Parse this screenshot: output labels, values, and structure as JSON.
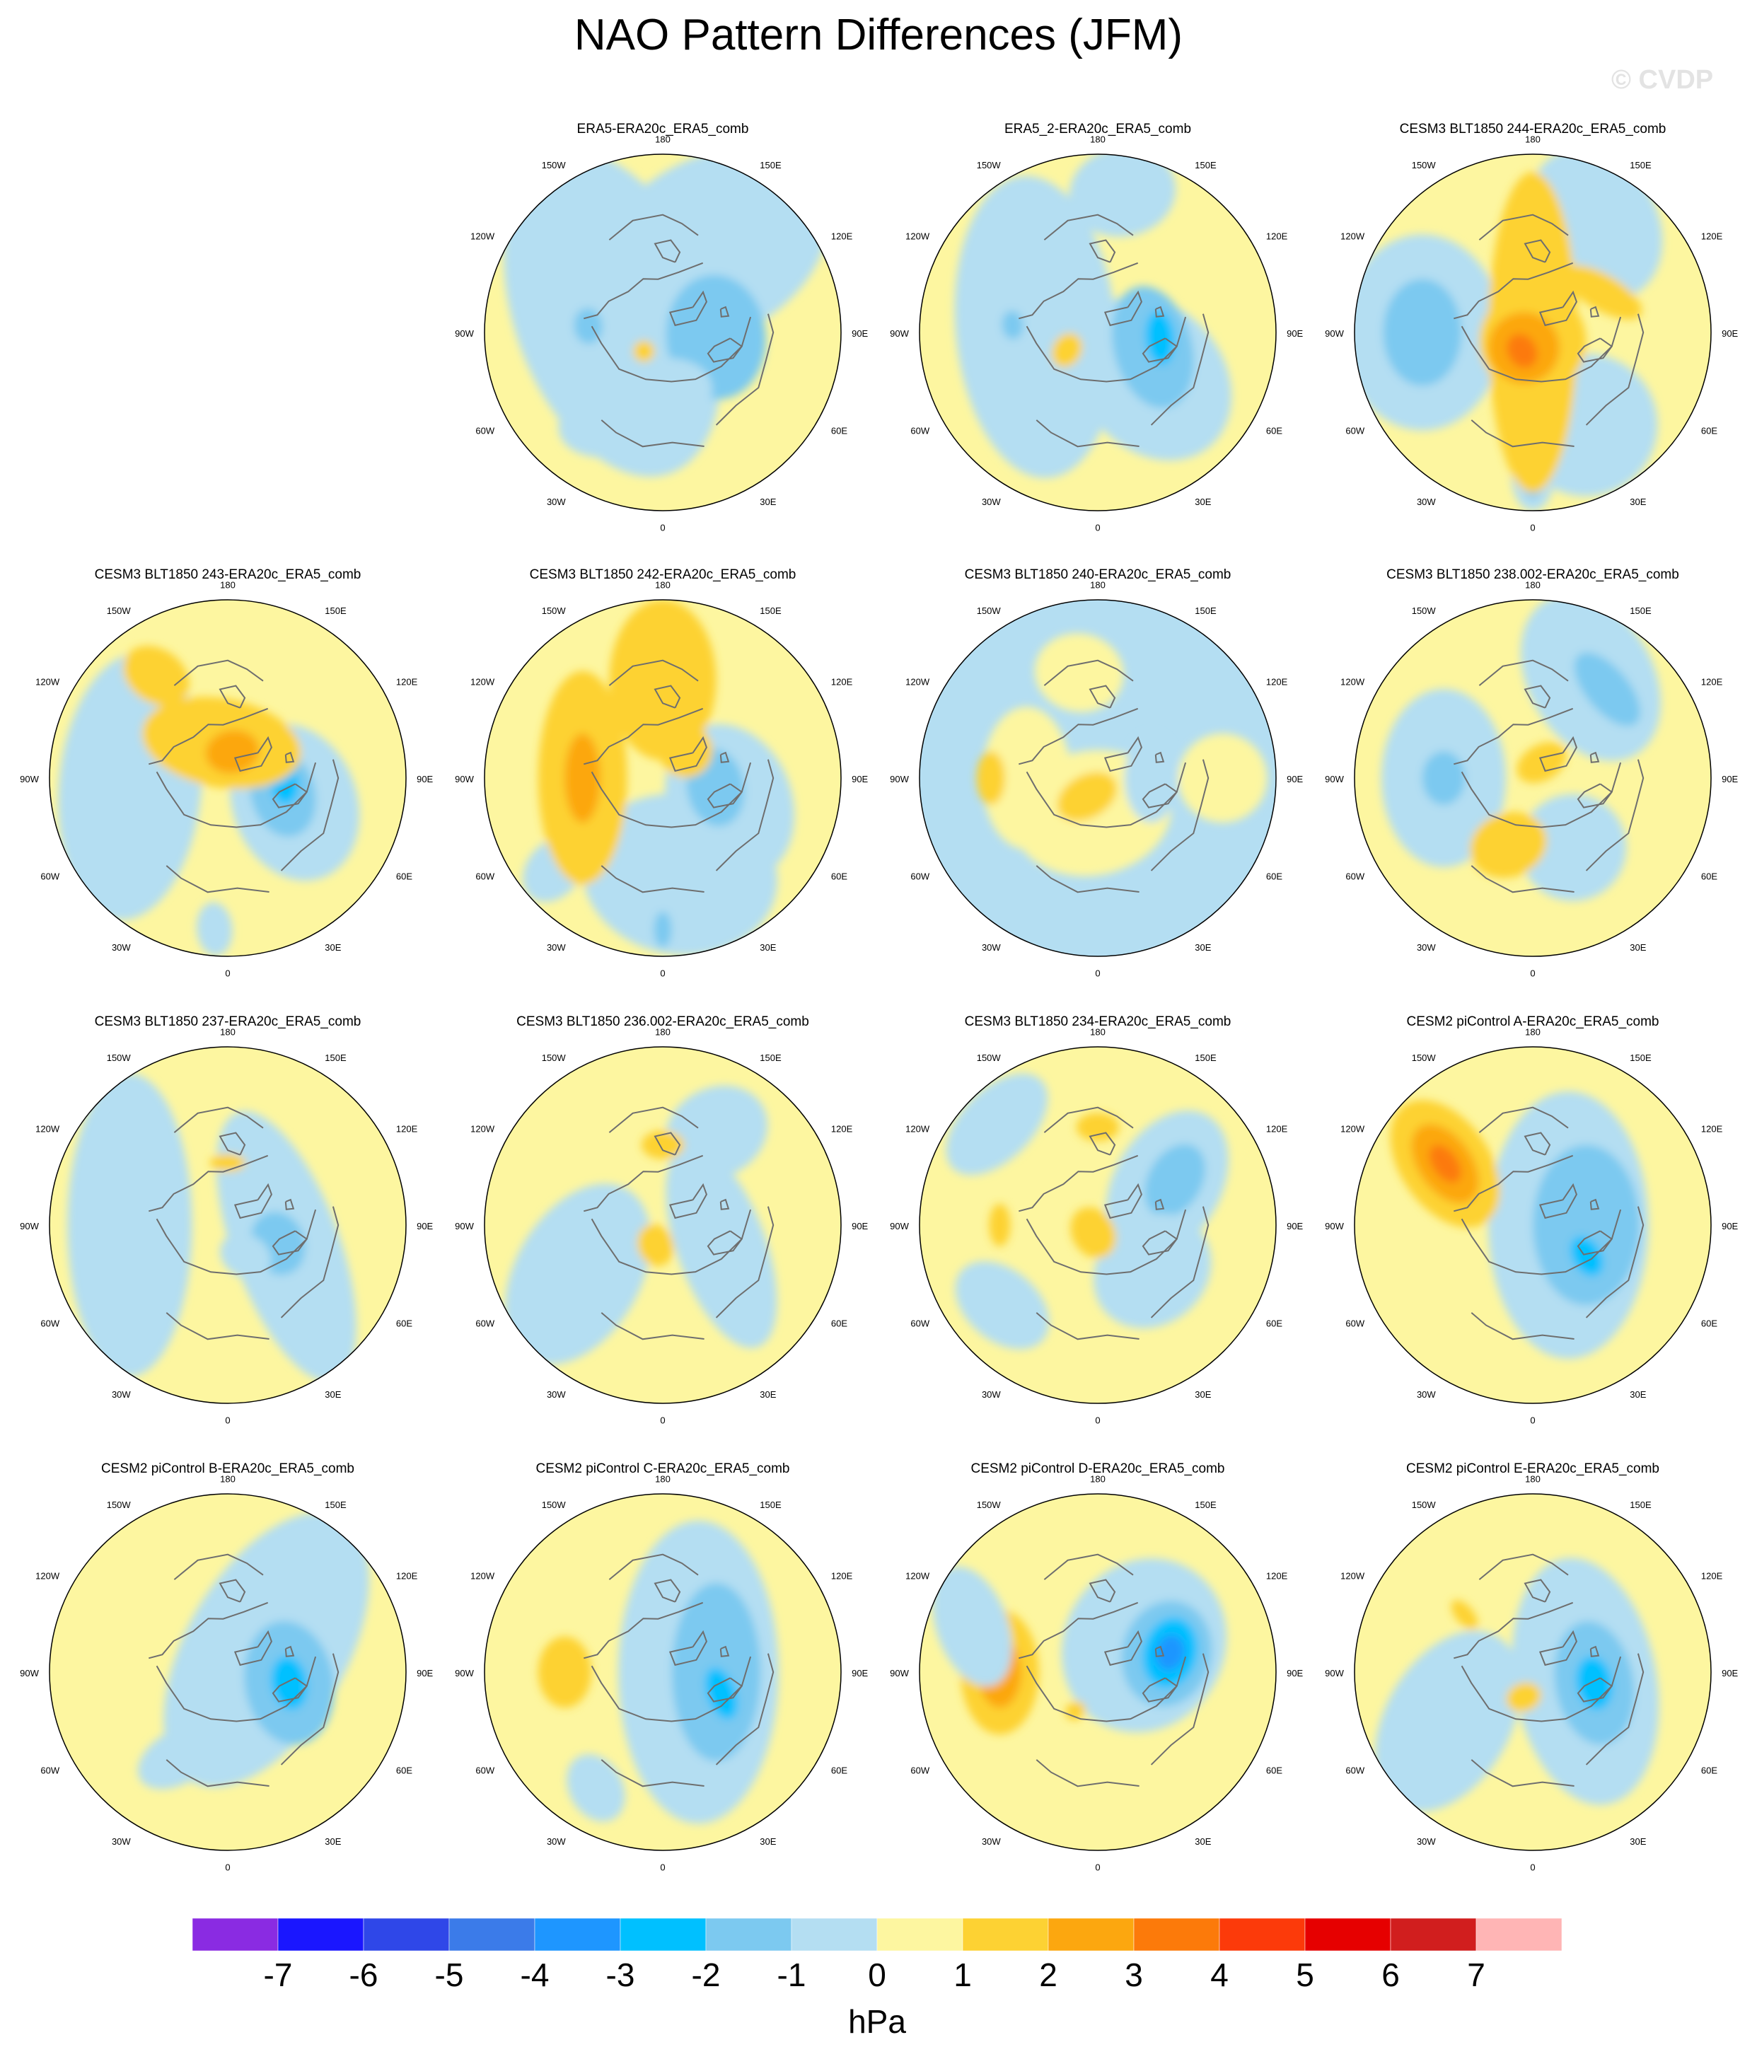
{
  "title": "NAO Pattern Differences (JFM)",
  "watermark": "© CVDP",
  "colors": {
    "neg_7": "#8a2be2",
    "neg_6": "#1a16ff",
    "neg_5": "#2f47e8",
    "neg_4": "#3b7be9",
    "neg_3": "#1e96ff",
    "neg_2": "#00c0ff",
    "neg_1": "#7cc9f0",
    "neg_0": "#b4def2",
    "pos_0": "#fdf6a0",
    "pos_1": "#fdd233",
    "pos_2": "#fca70f",
    "pos_3": "#fc7a0a",
    "pos_4": "#fc3a0a",
    "pos_5": "#e60000",
    "pos_6": "#d11e1e",
    "pos_7": "#ffb5b5",
    "coast": "#6e6e6e",
    "border": "#000000"
  },
  "map_labels": {
    "top": "180",
    "bottom": "0",
    "left": "90W",
    "right": "90E",
    "upper_left_outer": "120W",
    "upper_left_inner": "150W",
    "upper_right_inner": "150E",
    "upper_right_outer": "120E",
    "lower_left_outer": "60W",
    "lower_left_inner": "30W",
    "lower_right_inner": "30E",
    "lower_right_outer": "60E"
  },
  "panels": [
    {
      "title": "ERA5-ERA20c_ERA5_comb",
      "base": "pos",
      "blobs": [
        {
          "lon": 200,
          "r": 0.3,
          "rx": 0.95,
          "ry": 0.55,
          "v": -1
        },
        {
          "lon": 300,
          "r": 0.55,
          "rx": 0.7,
          "ry": 0.5,
          "v": -1
        },
        {
          "lon": 5,
          "r": 0.3,
          "rx": 0.35,
          "ry": 0.28,
          "v": -2
        },
        {
          "lon": 110,
          "r": 0.45,
          "rx": 0.45,
          "ry": 0.25,
          "v": -1
        },
        {
          "lon": 185,
          "r": 0.42,
          "rx": 0.1,
          "ry": 0.08,
          "v": -2
        },
        {
          "lon": 135,
          "r": 0.15,
          "rx": 0.06,
          "ry": 0.06,
          "v": 1
        }
      ]
    },
    {
      "title": "ERA5_2-ERA20c_ERA5_comb",
      "base": "pos",
      "blobs": [
        {
          "lon": 185,
          "r": 0.35,
          "rx": 0.85,
          "ry": 0.45,
          "v": -1
        },
        {
          "lon": 40,
          "r": 0.4,
          "rx": 0.5,
          "ry": 0.4,
          "v": -1
        },
        {
          "lon": 15,
          "r": 0.32,
          "rx": 0.35,
          "ry": 0.22,
          "v": -2
        },
        {
          "lon": 5,
          "r": 0.35,
          "rx": 0.15,
          "ry": 0.08,
          "v": -3
        },
        {
          "lon": 280,
          "r": 0.8,
          "rx": 0.3,
          "ry": 0.25,
          "v": -1
        },
        {
          "lon": 185,
          "r": 0.48,
          "rx": 0.08,
          "ry": 0.06,
          "v": -2
        },
        {
          "lon": 150,
          "r": 0.2,
          "rx": 0.1,
          "ry": 0.08,
          "v": 1
        }
      ]
    },
    {
      "title": "CESM3 BLT1850 244-ERA20c_ERA5_comb",
      "base": "pos",
      "blobs": [
        {
          "lon": 180,
          "r": 0.62,
          "rx": 0.55,
          "ry": 0.45,
          "v": -1
        },
        {
          "lon": 180,
          "r": 0.62,
          "rx": 0.3,
          "ry": 0.22,
          "v": -2
        },
        {
          "lon": 300,
          "r": 0.7,
          "rx": 0.35,
          "ry": 0.45,
          "v": -1
        },
        {
          "lon": 60,
          "r": 0.6,
          "rx": 0.4,
          "ry": 0.4,
          "v": -1
        },
        {
          "lon": 90,
          "r": 0.8,
          "rx": 0.12,
          "ry": 0.2,
          "v": -1
        },
        {
          "lon": 90,
          "r": 0.85,
          "rx": 0.05,
          "ry": 0.08,
          "v": -2
        },
        {
          "lon": 180,
          "r": 0.0,
          "rx": 0.9,
          "ry": 0.25,
          "v": 1
        },
        {
          "lon": 90,
          "r": 0.05,
          "rx": 0.3,
          "ry": 0.3,
          "v": 1
        },
        {
          "lon": 120,
          "r": 0.1,
          "rx": 0.2,
          "ry": 0.2,
          "v": 2
        },
        {
          "lon": 120,
          "r": 0.12,
          "rx": 0.08,
          "ry": 0.1,
          "v": 3
        },
        {
          "lon": 330,
          "r": 0.45,
          "rx": 0.1,
          "ry": 0.25,
          "v": 1
        }
      ]
    },
    {
      "title": "CESM3 BLT1850 243-ERA20c_ERA5_comb",
      "base": "pos",
      "blobs": [
        {
          "lon": 175,
          "r": 0.55,
          "rx": 0.75,
          "ry": 0.4,
          "v": -1
        },
        {
          "lon": 20,
          "r": 0.4,
          "rx": 0.45,
          "ry": 0.35,
          "v": -1
        },
        {
          "lon": 15,
          "r": 0.32,
          "rx": 0.25,
          "ry": 0.18,
          "v": -2
        },
        {
          "lon": 5,
          "r": 0.32,
          "rx": 0.12,
          "ry": 0.08,
          "v": -3
        },
        {
          "lon": 260,
          "r": 0.2,
          "rx": 0.45,
          "ry": 0.25,
          "v": 1
        },
        {
          "lon": 280,
          "r": 0.15,
          "rx": 0.15,
          "ry": 0.12,
          "v": 2
        },
        {
          "lon": 235,
          "r": 0.7,
          "rx": 0.2,
          "ry": 0.15,
          "v": 1
        },
        {
          "lon": 95,
          "r": 0.85,
          "rx": 0.1,
          "ry": 0.15,
          "v": -1
        }
      ]
    },
    {
      "title": "CESM3 BLT1850 242-ERA20c_ERA5_comb",
      "base": "pos",
      "blobs": [
        {
          "lon": 80,
          "r": 0.55,
          "rx": 0.55,
          "ry": 0.45,
          "v": -1
        },
        {
          "lon": 20,
          "r": 0.4,
          "rx": 0.45,
          "ry": 0.35,
          "v": -1
        },
        {
          "lon": 10,
          "r": 0.3,
          "rx": 0.22,
          "ry": 0.16,
          "v": -2
        },
        {
          "lon": 140,
          "r": 0.8,
          "rx": 0.2,
          "ry": 0.15,
          "v": -1
        },
        {
          "lon": 180,
          "r": 0.45,
          "rx": 0.6,
          "ry": 0.25,
          "v": 1
        },
        {
          "lon": 180,
          "r": 0.45,
          "rx": 0.25,
          "ry": 0.1,
          "v": 2
        },
        {
          "lon": 270,
          "r": 0.55,
          "rx": 0.3,
          "ry": 0.45,
          "v": 1
        },
        {
          "lon": 310,
          "r": 0.2,
          "rx": 0.15,
          "ry": 0.15,
          "v": 1
        },
        {
          "lon": 90,
          "r": 0.85,
          "rx": 0.05,
          "ry": 0.1,
          "v": -2
        }
      ]
    },
    {
      "title": "CESM3 BLT1850 240-ERA20c_ERA5_comb",
      "base": "neg",
      "blobs": [
        {
          "lon": 260,
          "r": 0.6,
          "rx": 0.25,
          "ry": 0.22,
          "v": 0
        },
        {
          "lon": 100,
          "r": 0.2,
          "rx": 0.45,
          "ry": 0.35,
          "v": 0
        },
        {
          "lon": 0,
          "r": 0.7,
          "rx": 0.25,
          "ry": 0.25,
          "v": 0
        },
        {
          "lon": 180,
          "r": 0.4,
          "rx": 0.4,
          "ry": 0.25,
          "v": 0
        },
        {
          "lon": 180,
          "r": 0.6,
          "rx": 0.15,
          "ry": 0.08,
          "v": 1
        },
        {
          "lon": 120,
          "r": 0.12,
          "rx": 0.18,
          "ry": 0.12,
          "v": 1
        },
        {
          "lon": 0,
          "r": 0.3,
          "rx": 0.25,
          "ry": 0.15,
          "v": -1
        }
      ]
    },
    {
      "title": "CESM3 BLT1850 238.002-ERA20c_ERA5_comb",
      "base": "pos",
      "blobs": [
        {
          "lon": 180,
          "r": 0.5,
          "rx": 0.5,
          "ry": 0.35,
          "v": -1
        },
        {
          "lon": 180,
          "r": 0.5,
          "rx": 0.15,
          "ry": 0.12,
          "v": -2
        },
        {
          "lon": 300,
          "r": 0.65,
          "rx": 0.35,
          "ry": 0.5,
          "v": -1
        },
        {
          "lon": 310,
          "r": 0.65,
          "rx": 0.12,
          "ry": 0.25,
          "v": -2
        },
        {
          "lon": 60,
          "r": 0.45,
          "rx": 0.3,
          "ry": 0.3,
          "v": -1
        },
        {
          "lon": 110,
          "r": 0.4,
          "rx": 0.22,
          "ry": 0.18,
          "v": 1
        },
        {
          "lon": 300,
          "r": 0.1,
          "rx": 0.15,
          "ry": 0.1,
          "v": 1
        }
      ]
    },
    {
      "title": "CESM3 BLT1850 237-ERA20c_ERA5_comb",
      "base": "pos",
      "blobs": [
        {
          "lon": 180,
          "r": 0.55,
          "rx": 0.85,
          "ry": 0.35,
          "v": -1
        },
        {
          "lon": 20,
          "r": 0.35,
          "rx": 0.8,
          "ry": 0.3,
          "v": -1
        },
        {
          "lon": 20,
          "r": 0.3,
          "rx": 0.18,
          "ry": 0.15,
          "v": -2
        },
        {
          "lon": 60,
          "r": 0.2,
          "rx": 0.15,
          "ry": 0.12,
          "v": -1
        },
        {
          "lon": 270,
          "r": 0.35,
          "rx": 0.1,
          "ry": 0.05,
          "v": 1
        }
      ]
    },
    {
      "title": "CESM3 BLT1850 236.002-ERA20c_ERA5_comb",
      "base": "pos",
      "blobs": [
        {
          "lon": 150,
          "r": 0.55,
          "rx": 0.55,
          "ry": 0.35,
          "v": -1
        },
        {
          "lon": 20,
          "r": 0.35,
          "rx": 0.6,
          "ry": 0.25,
          "v": -1
        },
        {
          "lon": 300,
          "r": 0.6,
          "rx": 0.3,
          "ry": 0.25,
          "v": -1
        },
        {
          "lon": 110,
          "r": 0.12,
          "rx": 0.1,
          "ry": 0.12,
          "v": 1
        },
        {
          "lon": 270,
          "r": 0.45,
          "rx": 0.12,
          "ry": 0.08,
          "v": 1
        }
      ]
    },
    {
      "title": "CESM3 BLT1850 234-ERA20c_ERA5_comb",
      "base": "pos",
      "blobs": [
        {
          "lon": 330,
          "r": 0.45,
          "rx": 0.45,
          "ry": 0.3,
          "v": -1
        },
        {
          "lon": 330,
          "r": 0.5,
          "rx": 0.22,
          "ry": 0.15,
          "v": -2
        },
        {
          "lon": 40,
          "r": 0.4,
          "rx": 0.3,
          "ry": 0.35,
          "v": -1
        },
        {
          "lon": 225,
          "r": 0.8,
          "rx": 0.2,
          "ry": 0.35,
          "v": -1
        },
        {
          "lon": 140,
          "r": 0.7,
          "rx": 0.2,
          "ry": 0.3,
          "v": -1
        },
        {
          "lon": 180,
          "r": 0.55,
          "rx": 0.12,
          "ry": 0.06,
          "v": 1
        },
        {
          "lon": 270,
          "r": 0.55,
          "rx": 0.12,
          "ry": 0.08,
          "v": 1
        },
        {
          "lon": 120,
          "r": 0.05,
          "rx": 0.12,
          "ry": 0.15,
          "v": 1
        }
      ]
    },
    {
      "title": "CESM2 piControl A-ERA20c_ERA5_comb",
      "base": "pos",
      "blobs": [
        {
          "lon": 0,
          "r": 0.2,
          "rx": 0.75,
          "ry": 0.45,
          "v": -1
        },
        {
          "lon": 0,
          "r": 0.3,
          "rx": 0.45,
          "ry": 0.3,
          "v": -2
        },
        {
          "lon": 30,
          "r": 0.35,
          "rx": 0.12,
          "ry": 0.08,
          "v": -3
        },
        {
          "lon": 215,
          "r": 0.6,
          "rx": 0.4,
          "ry": 0.25,
          "v": 1
        },
        {
          "lon": 215,
          "r": 0.6,
          "rx": 0.25,
          "ry": 0.15,
          "v": 2
        },
        {
          "lon": 215,
          "r": 0.6,
          "rx": 0.12,
          "ry": 0.07,
          "v": 3
        }
      ]
    },
    {
      "title": "CESM2 piControl B-ERA20c_ERA5_comb",
      "base": "pos",
      "blobs": [
        {
          "lon": 330,
          "r": 0.25,
          "rx": 0.85,
          "ry": 0.45,
          "v": -1
        },
        {
          "lon": 10,
          "r": 0.35,
          "rx": 0.35,
          "ry": 0.25,
          "v": -2
        },
        {
          "lon": 10,
          "r": 0.35,
          "rx": 0.15,
          "ry": 0.1,
          "v": -3
        },
        {
          "lon": 120,
          "r": 0.55,
          "rx": 0.25,
          "ry": 0.15,
          "v": -1
        }
      ]
    },
    {
      "title": "CESM2 piControl C-ERA20c_ERA5_comb",
      "base": "pos",
      "blobs": [
        {
          "lon": 0,
          "r": 0.2,
          "rx": 0.85,
          "ry": 0.45,
          "v": -1
        },
        {
          "lon": 0,
          "r": 0.3,
          "rx": 0.5,
          "ry": 0.25,
          "v": -2
        },
        {
          "lon": 20,
          "r": 0.35,
          "rx": 0.15,
          "ry": 0.08,
          "v": -3
        },
        {
          "lon": 180,
          "r": 0.55,
          "rx": 0.2,
          "ry": 0.15,
          "v": 1
        },
        {
          "lon": 120,
          "r": 0.75,
          "rx": 0.15,
          "ry": 0.2,
          "v": -1
        }
      ]
    },
    {
      "title": "CESM2 piControl D-ERA20c_ERA5_comb",
      "base": "pos",
      "blobs": [
        {
          "lon": 330,
          "r": 0.3,
          "rx": 0.5,
          "ry": 0.45,
          "v": -1
        },
        {
          "lon": 345,
          "r": 0.4,
          "rx": 0.3,
          "ry": 0.25,
          "v": -2
        },
        {
          "lon": 345,
          "r": 0.42,
          "rx": 0.2,
          "ry": 0.15,
          "v": -3
        },
        {
          "lon": 345,
          "r": 0.42,
          "rx": 0.1,
          "ry": 0.08,
          "v": -4
        },
        {
          "lon": 180,
          "r": 0.55,
          "rx": 0.35,
          "ry": 0.22,
          "v": 1
        },
        {
          "lon": 180,
          "r": 0.55,
          "rx": 0.2,
          "ry": 0.12,
          "v": 2
        },
        {
          "lon": 120,
          "r": 0.25,
          "rx": 0.06,
          "ry": 0.05,
          "v": 1
        },
        {
          "lon": 200,
          "r": 0.75,
          "rx": 0.35,
          "ry": 0.2,
          "v": -1
        }
      ]
    },
    {
      "title": "CESM2 piControl E-ERA20c_ERA5_comb",
      "base": "pos",
      "blobs": [
        {
          "lon": 10,
          "r": 0.3,
          "rx": 0.7,
          "ry": 0.4,
          "v": -1
        },
        {
          "lon": 10,
          "r": 0.35,
          "rx": 0.35,
          "ry": 0.22,
          "v": -2
        },
        {
          "lon": 10,
          "r": 0.35,
          "rx": 0.15,
          "ry": 0.1,
          "v": -3
        },
        {
          "lon": 150,
          "r": 0.55,
          "rx": 0.55,
          "ry": 0.35,
          "v": -1
        },
        {
          "lon": 110,
          "r": 0.15,
          "rx": 0.1,
          "ry": 0.08,
          "v": 1
        },
        {
          "lon": 220,
          "r": 0.5,
          "rx": 0.1,
          "ry": 0.05,
          "v": 1
        }
      ]
    }
  ],
  "colorbar": {
    "labels": [
      "-7",
      "-6",
      "-5",
      "-4",
      "-3",
      "-2",
      "-1",
      "0",
      "1",
      "2",
      "3",
      "4",
      "5",
      "6",
      "7"
    ],
    "unit": "hPa",
    "swatches": [
      "#8a2be2",
      "#1a16ff",
      "#2f47e8",
      "#3b7be9",
      "#1e96ff",
      "#00c0ff",
      "#7cc9f0",
      "#b4def2",
      "#fdf6a0",
      "#fdd233",
      "#fca70f",
      "#fc7a0a",
      "#fc3a0a",
      "#e60000",
      "#d11e1e",
      "#ffb5b5"
    ]
  }
}
